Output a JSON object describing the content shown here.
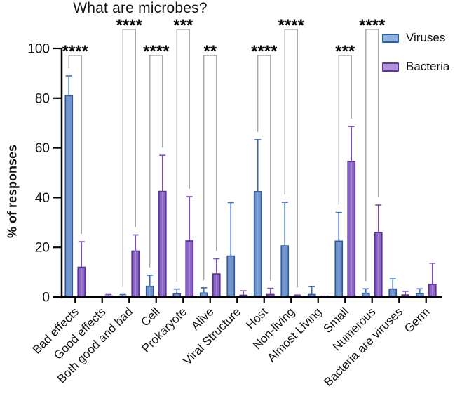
{
  "title": "What are microbes?",
  "y_axis_label": "% of responses",
  "legend": {
    "items": [
      {
        "label": "Viruses",
        "fill": "#8fb2de",
        "border": "#2c5d9e"
      },
      {
        "label": "Bacteria",
        "fill": "#b393dd",
        "border": "#5c35a0"
      }
    ]
  },
  "chart_data": {
    "type": "bar",
    "title": "What are microbes?",
    "xlabel": "",
    "ylabel": "% of responses",
    "ylim": [
      0,
      100
    ],
    "yticks": [
      0,
      20,
      40,
      60,
      80,
      100
    ],
    "grid": false,
    "legend_position": "top-right",
    "error_bars": "upper SD caps",
    "categories": [
      "Bad effects",
      "Good effects",
      "Both good and bad",
      "Cell",
      "Prokaryote",
      "Alive",
      "Viral Structure",
      "Host",
      "Non-living",
      "Almost Living",
      "Small",
      "Numerous",
      "Bacteria are viruses",
      "Germ"
    ],
    "series": [
      {
        "name": "Viruses",
        "fill": "#6f94cb",
        "highlight": "#93b4e0",
        "border": "#31589f",
        "error_color": "#3b6ab8",
        "values": [
          81,
          0,
          0.4,
          4.3,
          1.3,
          1.6,
          16.5,
          42.4,
          20.6,
          1.0,
          22.5,
          1.5,
          3.2,
          1.4
        ],
        "errors_upper": [
          8,
          0,
          0.6,
          4.5,
          1.9,
          2.1,
          21.5,
          20.9,
          17.5,
          3.2,
          11.5,
          1.8,
          4.1,
          1.9
        ]
      },
      {
        "name": "Bacteria",
        "fill": "#8a67c3",
        "highlight": "#b093dc",
        "border": "#5d2f9e",
        "error_color": "#7a4ec0",
        "values": [
          12,
          0.4,
          18.5,
          42.5,
          22.6,
          9.3,
          0.7,
          1.0,
          0.4,
          0.2,
          54.5,
          26,
          0.8,
          5.1
        ],
        "errors_upper": [
          10.3,
          0.6,
          6.5,
          14.5,
          17.8,
          6.1,
          1.8,
          2.5,
          0.4,
          0.1,
          14.1,
          11,
          1.5,
          8.5
        ]
      }
    ],
    "significance": [
      {
        "category_index": 0,
        "category": "Bad effects",
        "stars": "****",
        "bracket": "low"
      },
      {
        "category_index": 2,
        "category": "Both good and bad",
        "stars": "****",
        "bracket": "high"
      },
      {
        "category_index": 3,
        "category": "Cell",
        "stars": "****",
        "bracket": "low"
      },
      {
        "category_index": 4,
        "category": "Prokaryote",
        "stars": "***",
        "bracket": "high"
      },
      {
        "category_index": 5,
        "category": "Alive",
        "stars": "**",
        "bracket": "low"
      },
      {
        "category_index": 7,
        "category": "Host",
        "stars": "****",
        "bracket": "low"
      },
      {
        "category_index": 8,
        "category": "Non-living",
        "stars": "****",
        "bracket": "high"
      },
      {
        "category_index": 10,
        "category": "Small",
        "stars": "***",
        "bracket": "low"
      },
      {
        "category_index": 11,
        "category": "Numerous",
        "stars": "****",
        "bracket": "high"
      }
    ],
    "colors": {
      "axis": "#000000",
      "bracket": "#9a9a9a",
      "stars": "#000000"
    }
  }
}
